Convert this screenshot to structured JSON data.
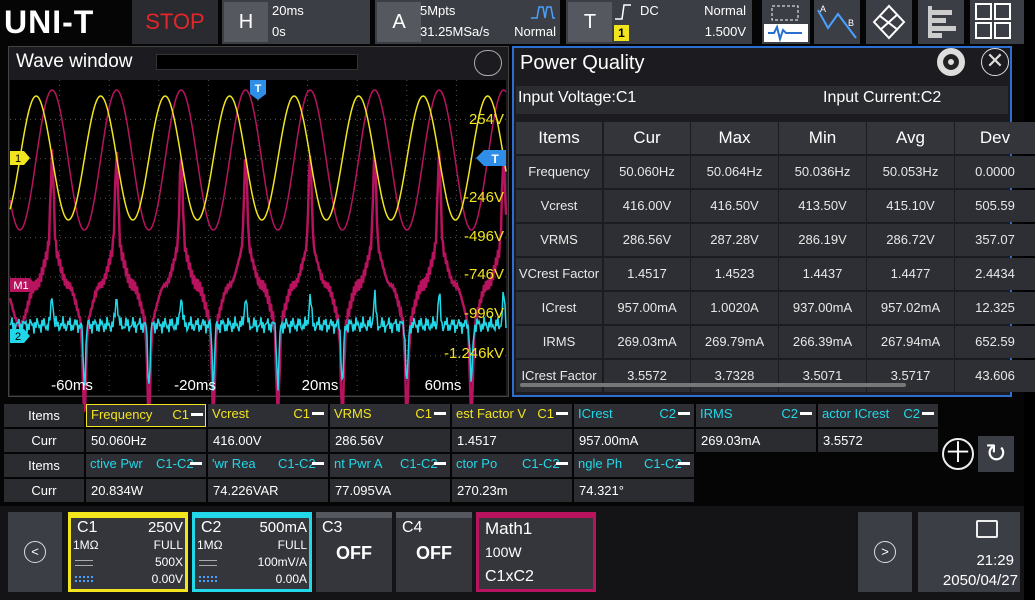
{
  "top_bar": {
    "brand": "UNI-T",
    "status": "STOP",
    "horizontal": {
      "label": "H",
      "timebase": "20ms",
      "offset": "0s"
    },
    "acquire": {
      "label": "A",
      "depth": "5Mpts",
      "rate": "31.25MSa/s",
      "mode": "Normal"
    },
    "trigger": {
      "label": "T",
      "coupling": "DC",
      "mode": "Normal",
      "source": "1",
      "level": "1.500V"
    }
  },
  "wave_window": {
    "title": "Wave window",
    "trigger_marker": "T",
    "channel_markers": [
      "1",
      "M1",
      "2"
    ],
    "level_marker": "T",
    "y_labels": [
      "254V",
      "-246V",
      "-496V",
      "-746V",
      "-996V",
      "-1.246kV"
    ],
    "x_labels": [
      "-60ms",
      "-20ms",
      "20ms",
      "60ms"
    ]
  },
  "power_quality": {
    "title": "Power Quality",
    "input_voltage": "Input Voltage:C1",
    "input_current": "Input Current:C2",
    "columns": [
      "Items",
      "Cur",
      "Max",
      "Min",
      "Avg",
      "Dev"
    ],
    "rows": [
      [
        "Frequency",
        "50.060Hz",
        "50.064Hz",
        "50.036Hz",
        "50.053Hz",
        "0.0000"
      ],
      [
        "Vcrest",
        "416.00V",
        "416.50V",
        "413.50V",
        "415.10V",
        "505.59"
      ],
      [
        "VRMS",
        "286.56V",
        "287.28V",
        "286.19V",
        "286.72V",
        "357.07"
      ],
      [
        "VCrest Factor",
        "1.4517",
        "1.4523",
        "1.4437",
        "1.4477",
        "2.4434"
      ],
      [
        "ICrest",
        "957.00mA",
        "1.0020A",
        "937.00mA",
        "957.02mA",
        "12.325"
      ],
      [
        "IRMS",
        "269.03mA",
        "269.79mA",
        "266.39mA",
        "267.94mA",
        "652.59"
      ],
      [
        "ICrest Factor",
        "3.5572",
        "3.7328",
        "3.5071",
        "3.5717",
        "43.606"
      ]
    ]
  },
  "measure_bar": {
    "items_label": "Items",
    "value_label": "Curr",
    "groups": [
      [
        {
          "name": "Frequency",
          "source": "C1",
          "value": "50.060Hz"
        },
        {
          "name": "Vcrest",
          "source": "C1",
          "value": "416.00V"
        },
        {
          "name": "VRMS",
          "source": "C1",
          "value": "286.56V"
        },
        {
          "name": "est Factor V",
          "source": "C1",
          "value": "1.4517"
        },
        {
          "name": "ICrest",
          "source": "C2",
          "value": "957.00mA"
        },
        {
          "name": "IRMS",
          "source": "C2",
          "value": "269.03mA"
        },
        {
          "name": "actor ICrest",
          "source": "C2",
          "value": "3.5572"
        }
      ],
      [
        {
          "name": "ctive Pwr",
          "source": "C1-C2",
          "value": "20.834W"
        },
        {
          "name": "'wr Rea",
          "source": "C1-C2",
          "value": "74.226VAR"
        },
        {
          "name": "nt Pwr A",
          "source": "C1-C2",
          "value": "77.095VA"
        },
        {
          "name": "ctor Po",
          "source": "C1-C2",
          "value": "270.23m"
        },
        {
          "name": "ngle Ph",
          "source": "C1-C2",
          "value": "74.321°"
        }
      ]
    ]
  },
  "channel_bar": {
    "c1": {
      "name": "C1",
      "scale": "250V",
      "impedance": "1MΩ",
      "bandwidth": "FULL",
      "probe": "500X",
      "offset": "0.00V"
    },
    "c2": {
      "name": "C2",
      "scale": "500mA",
      "impedance": "1MΩ",
      "bandwidth": "FULL",
      "probe": "100mV/A",
      "offset": "0.00A"
    },
    "c3": {
      "name": "C3",
      "state": "OFF"
    },
    "c4": {
      "name": "C4",
      "state": "OFF"
    },
    "math": {
      "name": "Math1",
      "scale": "100W",
      "expression": "C1xC2"
    },
    "clock": {
      "time": "21:29",
      "date": "2050/04/27"
    }
  }
}
